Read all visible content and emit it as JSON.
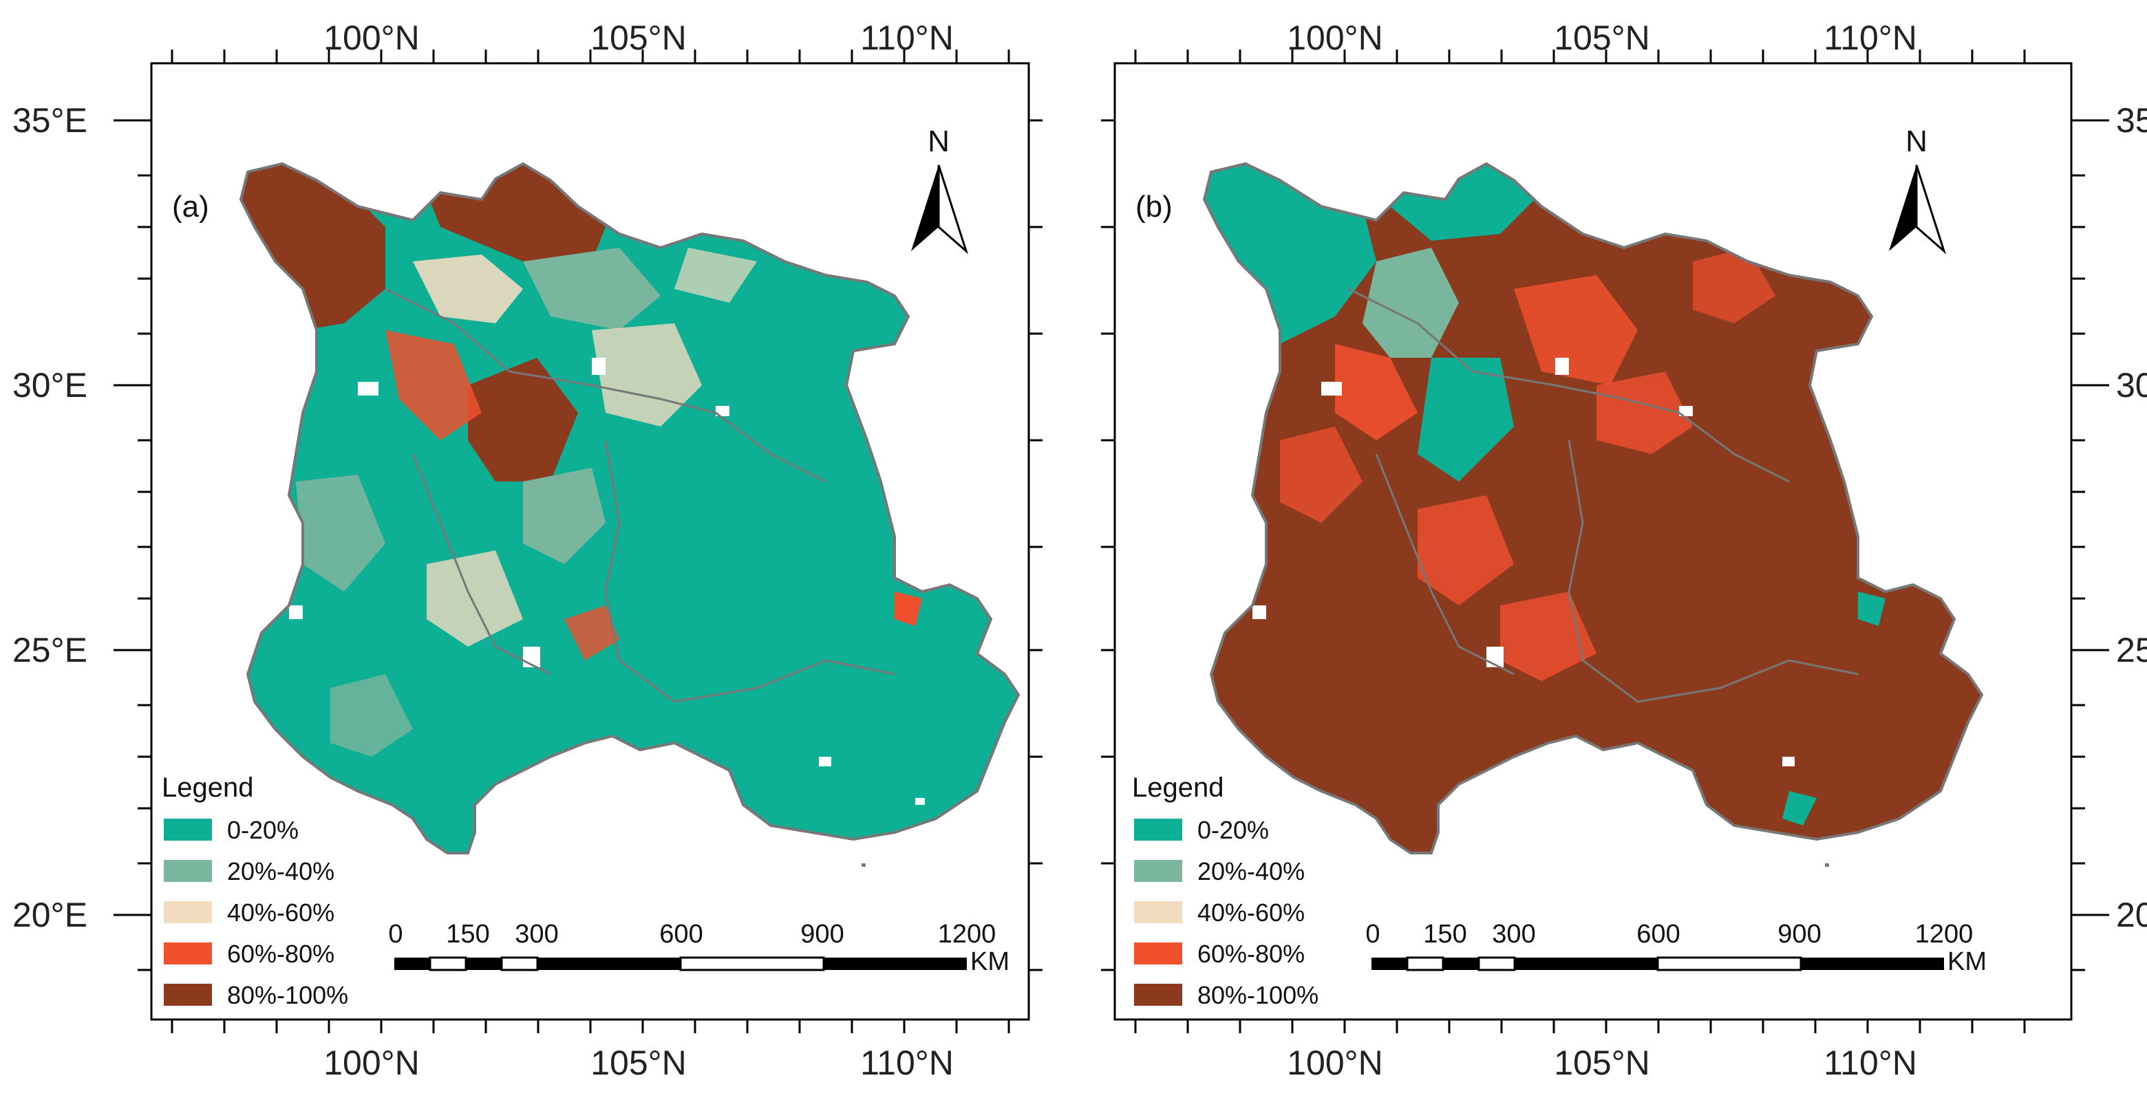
{
  "colors": {
    "c0_20": "#0daf95",
    "c20_40": "#7ab59d",
    "c40_60": "#f2dcc0",
    "c60_80": "#f0502e",
    "c80_100": "#8c3a1e",
    "boundary": "#777777"
  },
  "axes": {
    "top_ticks": [
      "100°N",
      "105°N",
      "110°N"
    ],
    "bottom_ticks": [
      "100°N",
      "105°N",
      "110°N"
    ],
    "side_ticks": [
      "35°E",
      "30°E",
      "25°E",
      "20°E"
    ]
  },
  "panels": [
    {
      "label": "(a)",
      "north": "N",
      "legend_title": "Legend",
      "legend": [
        "0-20%",
        "20%-40%",
        "40%-60%",
        "60%-80%",
        "80%-100%"
      ],
      "scale_labels": [
        "0",
        "150",
        "300",
        "600",
        "900",
        "1200"
      ],
      "scale_unit": "KM"
    },
    {
      "label": "(b)",
      "north": "N",
      "legend_title": "Legend",
      "legend": [
        "0-20%",
        "20%-40%",
        "40%-60%",
        "60%-80%",
        "80%-100%"
      ],
      "scale_labels": [
        "0",
        "150",
        "300",
        "600",
        "900",
        "1200"
      ],
      "scale_unit": "KM"
    }
  ]
}
